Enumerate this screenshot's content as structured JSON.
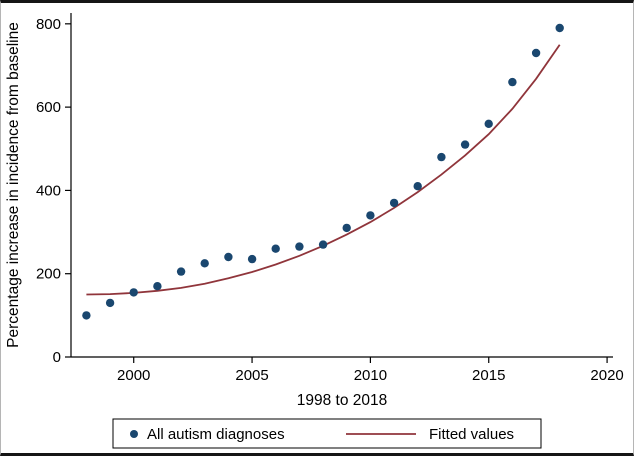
{
  "chart_data": {
    "type": "scatter",
    "title": "",
    "xlabel": "1998 to 2018",
    "ylabel": "Percentage increase in incidence from baseline",
    "x_ticks": [
      2000,
      2005,
      2010,
      2015,
      2020
    ],
    "y_ticks": [
      0,
      200,
      400,
      600,
      800
    ],
    "xlim": [
      1997.35,
      2020.25
    ],
    "ylim": [
      0,
      826
    ],
    "grid": false,
    "legend_position": "bottom",
    "x": [
      1998,
      1999,
      2000,
      2001,
      2002,
      2003,
      2004,
      2005,
      2006,
      2007,
      2008,
      2009,
      2010,
      2011,
      2012,
      2013,
      2014,
      2015,
      2016,
      2017,
      2018
    ],
    "series": [
      {
        "name": "All autism diagnoses",
        "type": "scatter",
        "color": "#1a476f",
        "values": [
          100,
          130,
          155,
          170,
          205,
          225,
          240,
          235,
          260,
          265,
          270,
          310,
          340,
          370,
          410,
          480,
          510,
          560,
          660,
          730,
          790
        ]
      },
      {
        "name": "Fitted values",
        "type": "line",
        "color": "#90353b",
        "values": [
          150,
          151,
          154,
          159,
          166,
          176,
          189,
          204,
          222,
          243,
          267,
          294,
          324,
          358,
          396,
          438,
          484,
          535,
          596,
          668,
          750
        ]
      }
    ]
  }
}
